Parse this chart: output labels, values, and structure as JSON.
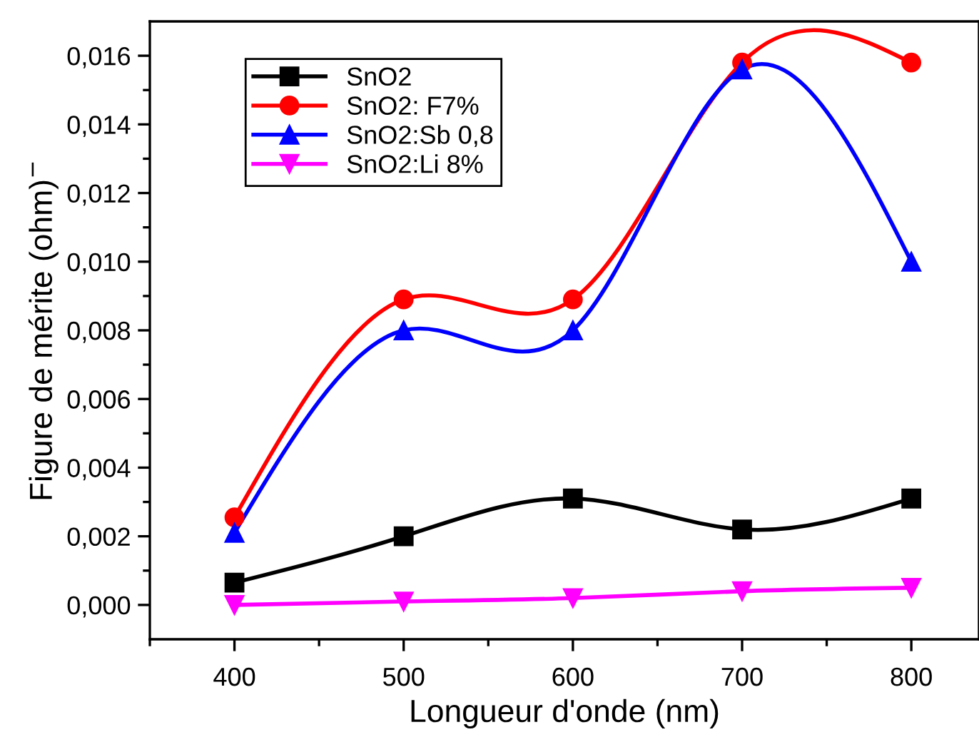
{
  "chart_data": {
    "type": "line",
    "xlabel": "Longueur d'onde (nm)",
    "ylabel": "Figure de mérite (ohm)$^{−}$",
    "x": [
      400,
      500,
      600,
      700,
      800
    ],
    "series": [
      {
        "name": "SnO2",
        "color": "#000000",
        "marker": "square",
        "values": [
          0.00065,
          0.002,
          0.0031,
          0.0022,
          0.0031
        ]
      },
      {
        "name": "SnO2: F7%",
        "color": "#ff0000",
        "marker": "circle",
        "values": [
          0.00255,
          0.0089,
          0.0089,
          0.0158,
          0.0158
        ]
      },
      {
        "name": "SnO2:Sb 0,8",
        "color": "#0000ff",
        "marker": "triangle",
        "values": [
          0.0021,
          0.008,
          0.008,
          0.0156,
          0.01
        ]
      },
      {
        "name": "SnO2:Li 8%",
        "color": "#ff00ff",
        "marker": "triangle_down",
        "values": [
          0.0,
          0.0001,
          0.0002,
          0.0004,
          0.0005
        ]
      }
    ],
    "xlim": [
      350,
      840
    ],
    "xticks": [
      {
        "value": 350,
        "label": null
      },
      400,
      {
        "value": 450,
        "label": null
      },
      500,
      {
        "value": 550,
        "label": null
      },
      600,
      {
        "value": 650,
        "label": null
      },
      700,
      {
        "value": 750,
        "label": null
      },
      800
    ],
    "ylim": [
      -0.001,
      0.017
    ],
    "yticks": [
      {
        "value": 0.0,
        "label": "0,000"
      },
      {
        "value": 0.001,
        "label": null
      },
      {
        "value": 0.002,
        "label": "0,002"
      },
      {
        "value": 0.003,
        "label": null
      },
      {
        "value": 0.004,
        "label": "0,004"
      },
      {
        "value": 0.005,
        "label": null
      },
      {
        "value": 0.006,
        "label": "0,006"
      },
      {
        "value": 0.007,
        "label": null
      },
      {
        "value": 0.008,
        "label": "0,008"
      },
      {
        "value": 0.009,
        "label": null
      },
      {
        "value": 0.01,
        "label": "0,010"
      },
      {
        "value": 0.011,
        "label": null
      },
      {
        "value": 0.012,
        "label": "0,012"
      },
      {
        "value": 0.013,
        "label": null
      },
      {
        "value": 0.014,
        "label": "0,014"
      },
      {
        "value": 0.015,
        "label": null
      },
      {
        "value": 0.016,
        "label": "0,016"
      }
    ],
    "grid": false,
    "legend": "top left",
    "line_style": "solid"
  }
}
